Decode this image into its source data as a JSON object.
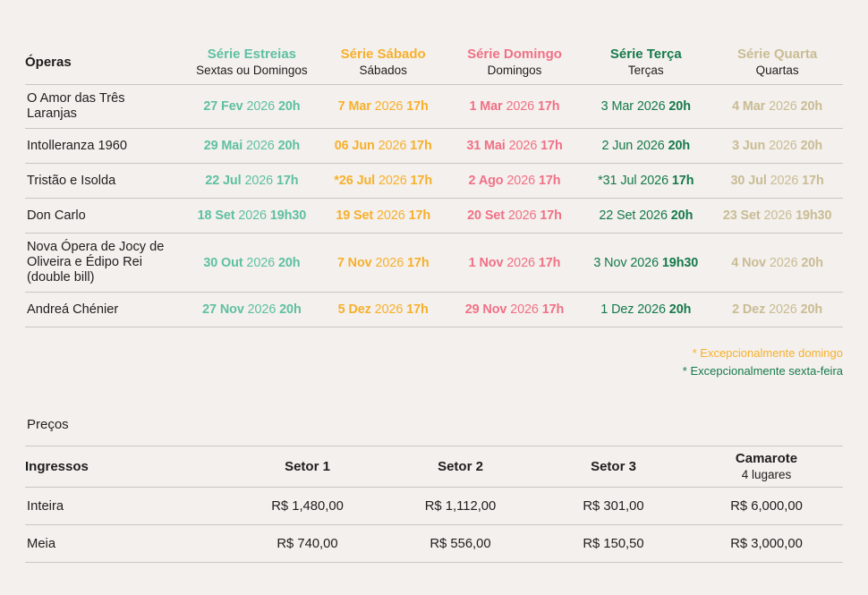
{
  "page": {
    "background": "#F4F0ED",
    "text_color": "#1E1E1C",
    "rule_color": "#CAC6C2"
  },
  "schedule": {
    "corner_header": "Óperas",
    "series": [
      {
        "label": "Série Estreias",
        "sublabel": "Sextas ou Domingos",
        "color": "#5EC0A2",
        "date_style": "bold-day"
      },
      {
        "label": "Série Sábado",
        "sublabel": "Sábados",
        "color": "#F6B02C",
        "date_style": "bold-day"
      },
      {
        "label": "Série Domingo",
        "sublabel": "Domingos",
        "color": "#F07186",
        "date_style": "bold-day"
      },
      {
        "label": "Série Terça",
        "sublabel": "Terças",
        "color": "#157A4B",
        "date_style": "bold-time-only"
      },
      {
        "label": "Série Quarta",
        "sublabel": "Quartas",
        "color": "#C9BC94",
        "date_style": "bold-day"
      }
    ],
    "rows": [
      {
        "opera": "O Amor das Três Laranjas",
        "dates": [
          {
            "day": "27 Fev",
            "year": "2026",
            "time": "20h"
          },
          {
            "day": "7 Mar",
            "year": "2026",
            "time": "17h"
          },
          {
            "day": "1 Mar",
            "year": "2026",
            "time": "17h"
          },
          {
            "day": "3 Mar",
            "year": "2026",
            "time": "20h"
          },
          {
            "day": "4 Mar",
            "year": "2026",
            "time": "20h"
          }
        ]
      },
      {
        "opera": "Intolleranza 1960",
        "dates": [
          {
            "day": "29 Mai",
            "year": "2026",
            "time": "20h"
          },
          {
            "day": "06 Jun",
            "year": "2026",
            "time": "17h"
          },
          {
            "day": "31 Mai",
            "year": "2026",
            "time": "17h"
          },
          {
            "day": "2 Jun",
            "year": "2026",
            "time": "20h"
          },
          {
            "day": "3 Jun",
            "year": "2026",
            "time": "20h"
          }
        ]
      },
      {
        "opera": "Tristão e Isolda",
        "dates": [
          {
            "day": "22 Jul",
            "year": "2026",
            "time": "17h"
          },
          {
            "day": "*26 Jul",
            "year": "2026",
            "time": "17h"
          },
          {
            "day": "2 Ago",
            "year": "2026",
            "time": "17h"
          },
          {
            "day": "*31 Jul",
            "year": "2026",
            "time": "17h"
          },
          {
            "day": "30 Jul",
            "year": "2026",
            "time": "17h"
          }
        ]
      },
      {
        "opera": "Don Carlo",
        "dates": [
          {
            "day": "18 Set",
            "year": "2026",
            "time": "19h30"
          },
          {
            "day": "19 Set",
            "year": "2026",
            "time": "17h"
          },
          {
            "day": "20 Set",
            "year": "2026",
            "time": "17h"
          },
          {
            "day": "22 Set",
            "year": "2026",
            "time": "20h"
          },
          {
            "day": "23 Set",
            "year": "2026",
            "time": "19h30"
          }
        ]
      },
      {
        "opera": "Nova Ópera de Jocy de Oliveira e Édipo Rei (double bill)",
        "dates": [
          {
            "day": "30 Out",
            "year": "2026",
            "time": "20h"
          },
          {
            "day": "7 Nov",
            "year": "2026",
            "time": "17h"
          },
          {
            "day": "1 Nov",
            "year": "2026",
            "time": "17h"
          },
          {
            "day": "3 Nov",
            "year": "2026",
            "time": "19h30"
          },
          {
            "day": "4 Nov",
            "year": "2026",
            "time": "20h"
          }
        ]
      },
      {
        "opera": "Andreá Chénier",
        "dates": [
          {
            "day": "27 Nov",
            "year": "2026",
            "time": "20h"
          },
          {
            "day": "5 Dez",
            "year": "2026",
            "time": "17h"
          },
          {
            "day": "29 Nov",
            "year": "2026",
            "time": "17h"
          },
          {
            "day": "1 Dez",
            "year": "2026",
            "time": "20h"
          },
          {
            "day": "2 Dez",
            "year": "2026",
            "time": "20h"
          }
        ]
      }
    ],
    "footnotes": [
      {
        "text": "* Excepcionalmente domingo",
        "color": "#F6B02C"
      },
      {
        "text": "* Excepcionalmente sexta-feira",
        "color": "#157A4B"
      }
    ]
  },
  "prices": {
    "title": "Preços",
    "corner_header": "Ingressos",
    "columns": [
      {
        "label": "Setor 1",
        "sublabel": ""
      },
      {
        "label": "Setor 2",
        "sublabel": ""
      },
      {
        "label": "Setor 3",
        "sublabel": ""
      },
      {
        "label": "Camarote",
        "sublabel": "4 lugares"
      }
    ],
    "rows": [
      {
        "label": "Inteira",
        "values": [
          "R$ 1,480,00",
          "R$ 1,112,00",
          "R$ 301,00",
          "R$ 6,000,00"
        ]
      },
      {
        "label": "Meia",
        "values": [
          "R$ 740,00",
          "R$ 556,00",
          "R$ 150,50",
          "R$ 3,000,00"
        ]
      }
    ]
  }
}
